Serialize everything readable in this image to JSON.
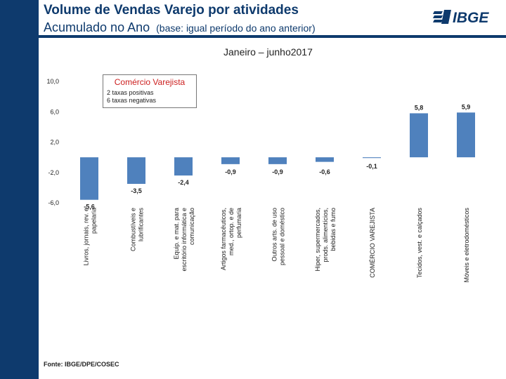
{
  "header": {
    "title": "Volume de Vendas Varejo por atividades",
    "subtitle_main": "Acumulado no Ano",
    "subtitle_note": "(base: igual período do ano anterior)",
    "period": "Janeiro – junho2017",
    "logo_text": "IBGE"
  },
  "legend": {
    "title": "Comércio Varejista",
    "line1": "2 taxas positivas",
    "line2": "6 taxas negativas"
  },
  "footer": {
    "source": "Fonte: IBGE/DPE/COSEC"
  },
  "colors": {
    "bar": "#4f81bd",
    "brand": "#0e3a6d",
    "legend_title": "#cc1f1f"
  },
  "chart_data": {
    "type": "bar",
    "title": "Volume de Vendas Varejo por atividades",
    "categories": [
      "Livros, jornais, rev. e papelaria",
      "Combustíveis e lubrificantes",
      "Equip. e mat. para escritório informática e comunicação",
      "Artigos farmacêuticos, med., ortop. e de perfumaria",
      "Outros arts. de uso pessoal e doméstico",
      "Hiper, supermercados, prods. alimentícios, bebidas e fumo",
      "COMÉRCIO VAREJISTA",
      "Tecidos, vest. e calçados",
      "Móveis e eletrodomésticos"
    ],
    "values": [
      -5.6,
      -3.5,
      -2.4,
      -0.9,
      -0.9,
      -0.6,
      -0.1,
      5.8,
      5.9
    ],
    "value_labels": [
      "-5,6",
      "-3,5",
      "-2,4",
      "-0,9",
      "-0,9",
      "-0,6",
      "-0,1",
      "5,8",
      "5,9"
    ],
    "yticks": [
      10,
      6,
      2,
      -2,
      -6
    ],
    "ytick_labels": [
      "10,0",
      "6,0",
      "2,0",
      "-2,0",
      "-6,0"
    ],
    "ylim": [
      -6,
      10
    ],
    "xlabel": "",
    "ylabel": "",
    "grid": false
  }
}
